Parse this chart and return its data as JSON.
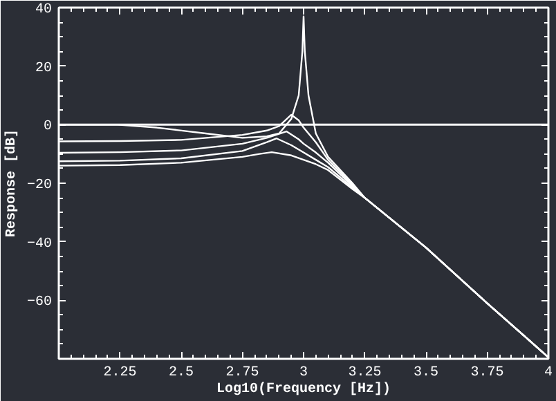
{
  "chart_data": {
    "type": "line",
    "xlabel": "Log10(Frequency [Hz])",
    "ylabel": "Response [dB]",
    "xlim": [
      2,
      4
    ],
    "ylim": [
      -80,
      40
    ],
    "xticks": [
      2.25,
      2.5,
      2.75,
      3,
      3.25,
      3.5,
      3.75,
      4
    ],
    "yticks": [
      40,
      20,
      0,
      -20,
      -40,
      -60
    ],
    "grid": false,
    "marker": "none",
    "line_style": "solid",
    "ref_lines": [
      {
        "axis": "y",
        "value": 0,
        "color": "#ffffff"
      }
    ],
    "series": [
      {
        "color": "#ffffff",
        "x": [
          2,
          2.24,
          2.4,
          2.6,
          2.75,
          2.85,
          2.9,
          2.95,
          2.98,
          2.995,
          3,
          3.005,
          3.02,
          3.05,
          3.1,
          3.2,
          3.25,
          3.5,
          3.75,
          4
        ],
        "values": [
          0,
          0,
          -1,
          -3,
          -4.5,
          -4,
          -3,
          2,
          10,
          25,
          37,
          25,
          10,
          -3,
          -11,
          -20,
          -25,
          -42,
          -61,
          -79.5
        ]
      },
      {
        "color": "#ffffff",
        "x": [
          2,
          2.25,
          2.5,
          2.75,
          2.85,
          2.9,
          2.95,
          2.98,
          3,
          3.05,
          3.1,
          3.2,
          3.25,
          3.5,
          3.75,
          4
        ],
        "values": [
          -5.7,
          -5.6,
          -5.2,
          -3.5,
          -2,
          -0.5,
          3.4,
          1.5,
          -1,
          -6,
          -12,
          -20.5,
          -25,
          -42,
          -61,
          -79.5
        ]
      },
      {
        "color": "#ffffff",
        "x": [
          2,
          2.25,
          2.5,
          2.75,
          2.85,
          2.93,
          2.98,
          3,
          3.05,
          3.1,
          3.2,
          3.25,
          3.5,
          3.75,
          4
        ],
        "values": [
          -9.6,
          -9.4,
          -8.8,
          -6.5,
          -4.5,
          -2.3,
          -5,
          -6.5,
          -9.5,
          -13,
          -21,
          -25,
          -42,
          -61,
          -79.5
        ]
      },
      {
        "color": "#ffffff",
        "x": [
          2,
          2.25,
          2.5,
          2.75,
          2.85,
          2.89,
          2.95,
          3,
          3.05,
          3.1,
          3.2,
          3.25,
          3.5,
          3.75,
          4
        ],
        "values": [
          -12.5,
          -12.3,
          -11.5,
          -9,
          -6,
          -4.7,
          -7,
          -9.5,
          -12,
          -14.5,
          -21.5,
          -25,
          -42,
          -61,
          -79.5
        ]
      },
      {
        "color": "#ffffff",
        "x": [
          2,
          2.25,
          2.5,
          2.75,
          2.82,
          2.87,
          2.95,
          3,
          3.05,
          3.1,
          3.2,
          3.25,
          3.5,
          3.75,
          4
        ],
        "values": [
          -14,
          -13.8,
          -13,
          -11,
          -10,
          -9.4,
          -10.5,
          -12,
          -13.5,
          -15.5,
          -22,
          -25,
          -42,
          -61,
          -79.5
        ]
      }
    ]
  }
}
